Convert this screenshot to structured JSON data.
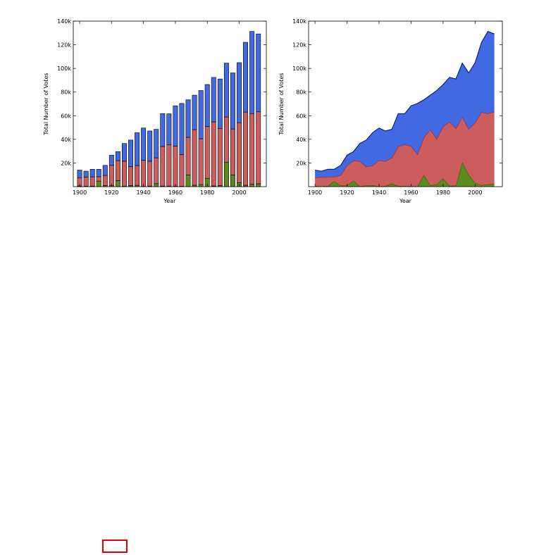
{
  "chart_data": [
    {
      "type": "bar",
      "stacked": true,
      "title": "",
      "xlabel": "Year",
      "ylabel": "Total Number of Votes",
      "xlim": [
        1896,
        2017
      ],
      "ylim": [
        0,
        140000
      ],
      "xticks": [
        1900,
        1920,
        1940,
        1960,
        1980,
        2000
      ],
      "yticks": [
        20000,
        40000,
        60000,
        80000,
        100000,
        120000,
        140000
      ],
      "yticklabels": [
        "20k",
        "40k",
        "60k",
        "80k",
        "100k",
        "120k",
        "140k"
      ],
      "grid": false,
      "x": [
        1900,
        1904,
        1908,
        1912,
        1916,
        1920,
        1924,
        1928,
        1932,
        1936,
        1940,
        1944,
        1948,
        1952,
        1956,
        1960,
        1964,
        1968,
        1972,
        1976,
        1980,
        1984,
        1988,
        1992,
        1996,
        2000,
        2004,
        2008,
        2012
      ],
      "series": [
        {
          "color": "#5b8a1f",
          "values": [
            600,
            400,
            500,
            4700,
            1000,
            1000,
            5100,
            300,
            1000,
            1100,
            200,
            500,
            2500,
            500,
            500,
            300,
            300,
            9900,
            1200,
            1700,
            7000,
            600,
            900,
            20700,
            9900,
            3300,
            1200,
            2000,
            2400
          ]
        },
        {
          "color": "#cd5c5c",
          "values": [
            7000,
            7700,
            7800,
            3700,
            8500,
            17000,
            16900,
            21200,
            15900,
            16700,
            22100,
            21000,
            21900,
            33500,
            35100,
            34000,
            26900,
            31800,
            47000,
            38800,
            43900,
            54200,
            48400,
            38200,
            38900,
            50800,
            61900,
            59800,
            60900
          ]
        },
        {
          "color": "#4169e1",
          "values": [
            6400,
            5000,
            6400,
            6300,
            8500,
            8600,
            7600,
            15000,
            22500,
            27800,
            27300,
            25600,
            24100,
            27800,
            26000,
            34100,
            43200,
            31800,
            29200,
            40800,
            35500,
            37600,
            41800,
            45600,
            47400,
            50800,
            59000,
            69500,
            65900
          ]
        }
      ]
    },
    {
      "type": "area",
      "stacked": true,
      "title": "",
      "xlabel": "Year",
      "ylabel": "Total Number of Votes",
      "xlim": [
        1896,
        2017
      ],
      "ylim": [
        0,
        140000
      ],
      "xticks": [
        1900,
        1920,
        1940,
        1960,
        1980,
        2000
      ],
      "yticks": [
        20000,
        40000,
        60000,
        80000,
        100000,
        120000,
        140000
      ],
      "yticklabels": [
        "20k",
        "40k",
        "60k",
        "80k",
        "100k",
        "120k",
        "140k"
      ],
      "grid": false,
      "x": [
        1900,
        1904,
        1908,
        1912,
        1916,
        1920,
        1924,
        1928,
        1932,
        1936,
        1940,
        1944,
        1948,
        1952,
        1956,
        1960,
        1964,
        1968,
        1972,
        1976,
        1980,
        1984,
        1988,
        1992,
        1996,
        2000,
        2004,
        2008,
        2012
      ],
      "series": [
        {
          "color": "#5b8a1f",
          "edge": "#2f5a0a",
          "values": [
            600,
            400,
            500,
            4700,
            1000,
            1000,
            5100,
            300,
            1000,
            1100,
            200,
            500,
            2500,
            500,
            500,
            300,
            300,
            9900,
            1200,
            1700,
            7000,
            600,
            900,
            20700,
            9900,
            3300,
            1200,
            2000,
            2400
          ]
        },
        {
          "color": "#cd5c5c",
          "edge": "#b11a1a",
          "values": [
            7000,
            7700,
            7800,
            3700,
            8500,
            17000,
            16900,
            21200,
            15900,
            16700,
            22100,
            21000,
            21900,
            33500,
            35100,
            34000,
            26900,
            31800,
            47000,
            38800,
            43900,
            54200,
            48400,
            38200,
            38900,
            50800,
            61900,
            59800,
            60900
          ]
        },
        {
          "color": "#4169e1",
          "edge": "#0a1a6e",
          "values": [
            6400,
            5000,
            6400,
            6300,
            8500,
            8600,
            7600,
            15000,
            22500,
            27800,
            27300,
            25600,
            24100,
            27800,
            26000,
            34100,
            43200,
            31800,
            29200,
            40800,
            35500,
            37600,
            41800,
            45600,
            47400,
            50800,
            59000,
            69500,
            65900
          ]
        }
      ]
    }
  ]
}
